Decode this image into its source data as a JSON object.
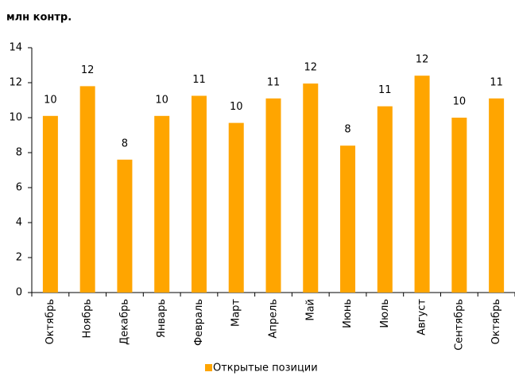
{
  "chart_data": {
    "type": "bar",
    "title": "млн контр.",
    "categories": [
      "Октябрь",
      "Ноябрь",
      "Декабрь",
      "Январь",
      "Февраль",
      "Март",
      "Апрель",
      "Май",
      "Июнь",
      "Июль",
      "Август",
      "Сентябрь",
      "Октябрь"
    ],
    "series": [
      {
        "name": "Открытые позиции",
        "color": "#ffa500",
        "values": [
          10.1,
          11.8,
          7.6,
          10.1,
          11.25,
          9.7,
          11.1,
          11.95,
          8.4,
          10.65,
          12.4,
          10.0,
          11.1
        ],
        "value_labels": [
          "10",
          "12",
          "8",
          "10",
          "11",
          "10",
          "11",
          "12",
          "8",
          "11",
          "12",
          "10",
          "11"
        ]
      }
    ],
    "ylim": [
      0,
      14
    ],
    "yticks": [
      0,
      2,
      4,
      6,
      8,
      10,
      12,
      14
    ],
    "grid": false,
    "legend": "bottom"
  }
}
